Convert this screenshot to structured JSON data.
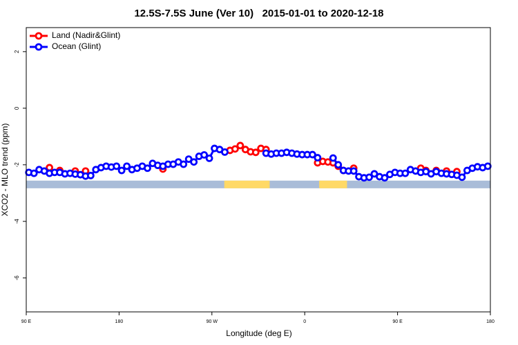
{
  "chart_data": {
    "type": "line",
    "title": "12.5S-7.5S June (Ver 10)   2015-01-01 to 2020-12-18",
    "xlabel": "Longitude (deg E)",
    "ylabel": "XCO2 - MLO trend (ppm)",
    "xlim": [
      90,
      540
    ],
    "ylim": [
      -7.2,
      2.85
    ],
    "xticks": [
      {
        "value": 90,
        "label": "90 E"
      },
      180,
      {
        "value": 270,
        "label": "90 W"
      },
      {
        "value": 360,
        "label": "0"
      },
      {
        "value": 450,
        "label": "90 E"
      },
      {
        "value": 540,
        "label": "180"
      }
    ],
    "yticks": [
      2,
      0,
      -2,
      -4,
      -6
    ],
    "legend": "top-left",
    "strip": {
      "ylim": [
        -2.83,
        -2.56
      ],
      "color": "#a9bcd8",
      "land_color": "#ffd966",
      "land": [
        [
          282,
          326
        ],
        [
          374,
          401
        ]
      ]
    },
    "x": [
      92.5,
      97.5,
      102.5,
      107.5,
      112.5,
      117.5,
      122.5,
      127.5,
      132.5,
      137.5,
      142.5,
      147.5,
      152.5,
      157.5,
      162.5,
      167.5,
      172.5,
      177.5,
      182.5,
      187.5,
      192.5,
      197.5,
      202.5,
      207.5,
      212.5,
      217.5,
      222.5,
      227.5,
      232.5,
      237.5,
      242.5,
      247.5,
      252.5,
      257.5,
      262.5,
      267.5,
      272.5,
      277.5,
      282.5,
      287.5,
      292.5,
      297.5,
      302.5,
      307.5,
      312.5,
      317.5,
      322.5,
      327.5,
      332.5,
      337.5,
      342.5,
      347.5,
      352.5,
      357.5,
      362.5,
      367.5,
      372.5,
      377.5,
      382.5,
      387.5,
      392.5,
      397.5,
      402.5,
      407.5,
      412.5,
      417.5,
      422.5,
      427.5,
      432.5,
      437.5,
      442.5,
      447.5,
      452.5,
      457.5,
      462.5,
      467.5,
      472.5,
      477.5,
      482.5,
      487.5,
      492.5,
      497.5,
      502.5,
      507.5,
      512.5,
      517.5,
      522.5,
      527.5,
      532.5,
      537.5
    ],
    "series": [
      {
        "name": "Land (Nadir&Glint)",
        "color": "#ff0000",
        "values": [
          null,
          null,
          null,
          null,
          -2.1,
          null,
          -2.2,
          null,
          null,
          -2.22,
          null,
          -2.22,
          null,
          null,
          null,
          null,
          null,
          null,
          null,
          null,
          null,
          null,
          null,
          null,
          null,
          null,
          -2.15,
          null,
          null,
          null,
          null,
          null,
          null,
          null,
          null,
          null,
          null,
          null,
          null,
          -1.49,
          -1.44,
          -1.32,
          -1.46,
          -1.54,
          -1.56,
          -1.42,
          -1.46,
          null,
          null,
          null,
          null,
          null,
          null,
          null,
          null,
          null,
          -1.93,
          -1.88,
          -1.9,
          -1.93,
          -2.05,
          -2.2,
          null,
          -2.12,
          null,
          null,
          null,
          null,
          null,
          null,
          null,
          null,
          null,
          null,
          null,
          null,
          -2.12,
          -2.2,
          null,
          -2.2,
          null,
          -2.22,
          null,
          -2.24,
          null,
          null,
          null,
          null,
          null,
          null
        ]
      },
      {
        "name": "Ocean (Glint)",
        "color": "#0000ff",
        "values": [
          -2.27,
          -2.3,
          -2.17,
          -2.22,
          -2.3,
          -2.27,
          -2.27,
          -2.32,
          -2.3,
          -2.33,
          -2.35,
          -2.4,
          -2.38,
          -2.17,
          -2.1,
          -2.05,
          -2.08,
          -2.05,
          -2.2,
          -2.05,
          -2.17,
          -2.12,
          -2.05,
          -2.12,
          -1.95,
          -2.02,
          -2.05,
          -1.98,
          -1.98,
          -1.9,
          -1.98,
          -1.8,
          -1.9,
          -1.7,
          -1.65,
          -1.77,
          -1.42,
          -1.46,
          -1.55,
          null,
          null,
          null,
          null,
          null,
          null,
          null,
          -1.59,
          -1.62,
          -1.59,
          -1.59,
          -1.56,
          -1.59,
          -1.62,
          -1.64,
          -1.64,
          -1.64,
          -1.75,
          null,
          null,
          -1.76,
          -2.0,
          -2.2,
          -2.22,
          -2.22,
          -2.42,
          -2.46,
          -2.44,
          -2.32,
          -2.42,
          -2.46,
          -2.34,
          -2.27,
          -2.3,
          -2.3,
          -2.17,
          -2.22,
          -2.27,
          -2.24,
          -2.32,
          -2.24,
          -2.3,
          -2.32,
          -2.34,
          -2.37,
          -2.44,
          -2.2,
          -2.12,
          -2.07,
          -2.1,
          -2.05
        ]
      }
    ]
  }
}
